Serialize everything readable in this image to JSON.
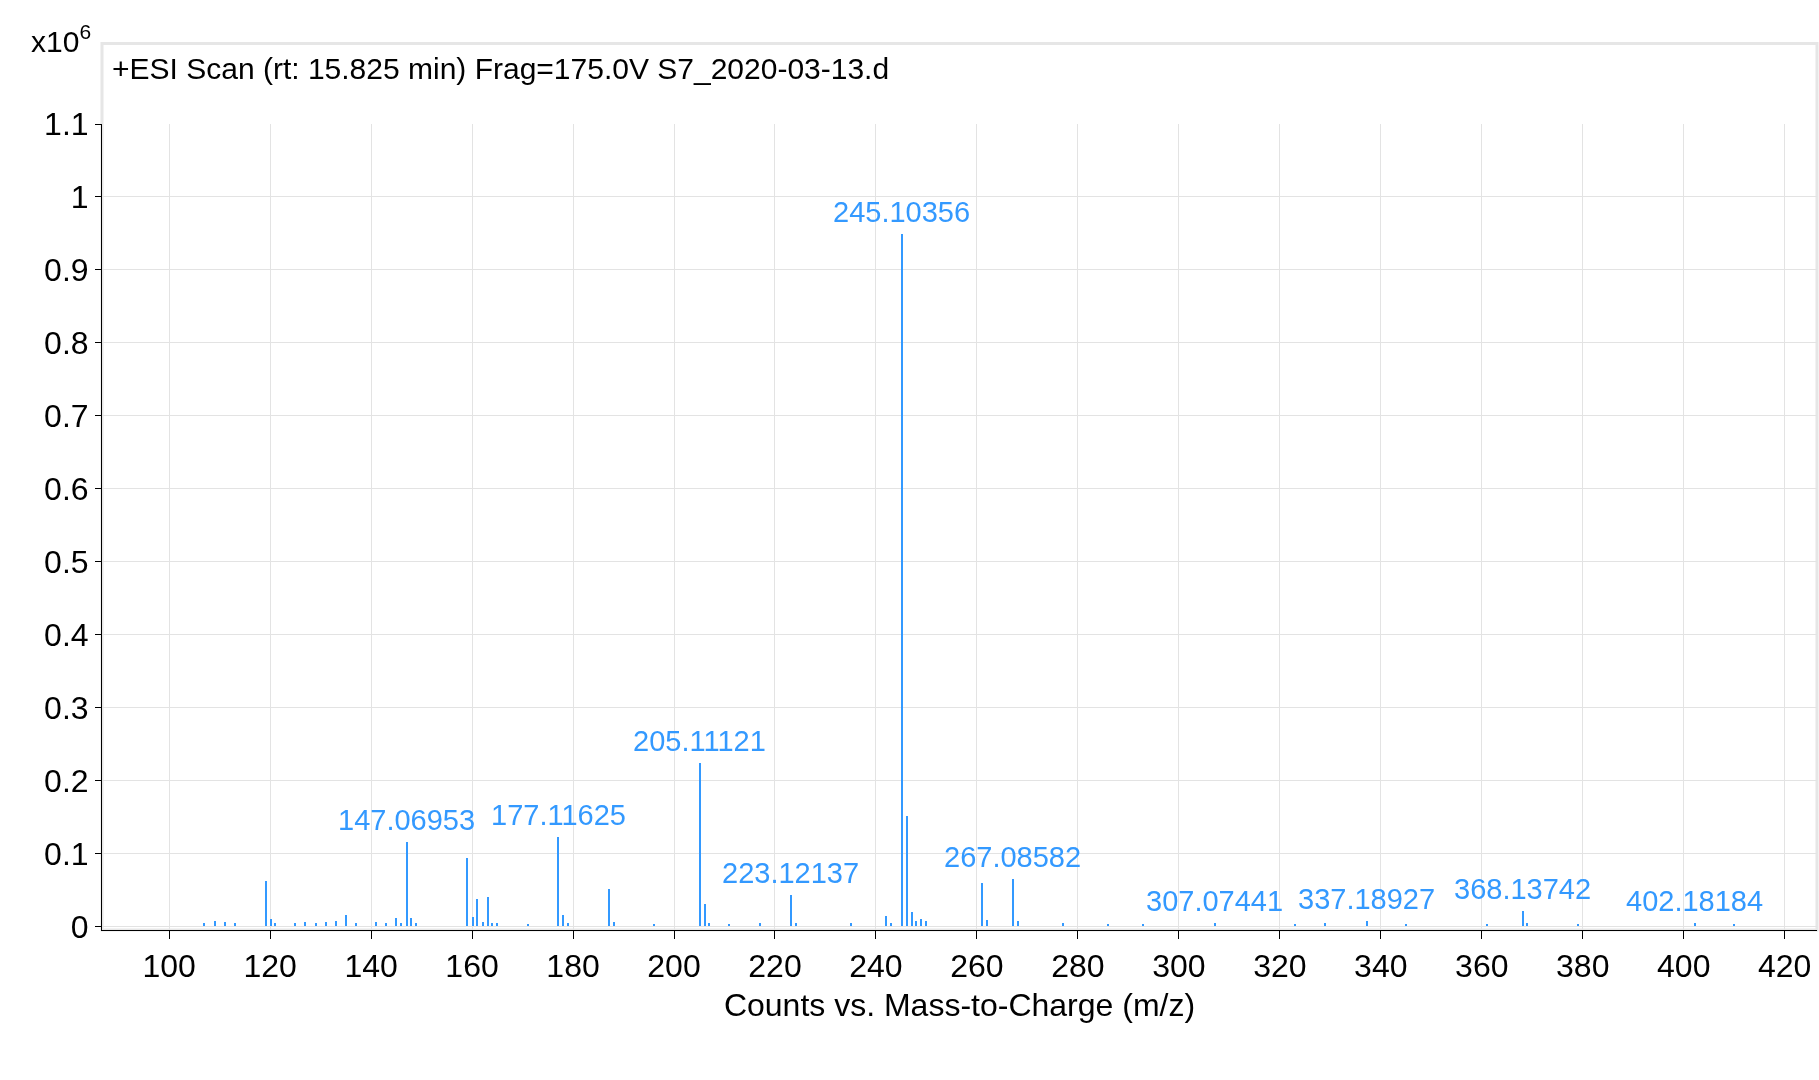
{
  "chart_data": {
    "type": "bar",
    "title": "+ESI Scan (rt: 15.825 min) Frag=175.0V S7_2020-03-13.d",
    "xlabel": "Counts vs. Mass-to-Charge (m/z)",
    "annotations": [
      "x10$^{6}$",
      {
        "text": "147.06953",
        "x": 147.06953,
        "y": 0.116
      },
      {
        "text": "177.11625",
        "x": 177.11625,
        "y": 0.122
      },
      {
        "text": "205.11121",
        "x": 205.11121,
        "y": 0.224
      },
      {
        "text": "223.12137",
        "x": 223.12137,
        "y": 0.043
      },
      {
        "text": "245.10356",
        "x": 245.10356,
        "y": 0.949
      },
      {
        "text": "267.08582",
        "x": 267.08582,
        "y": 0.065
      },
      {
        "text": "307.07441",
        "x": 307.07441,
        "y": 0.004
      },
      {
        "text": "337.18927",
        "x": 337.18927,
        "y": 0.008
      },
      {
        "text": "368.13742",
        "x": 368.13742,
        "y": 0.021
      },
      {
        "text": "402.18184",
        "x": 402.18184,
        "y": 0.004
      }
    ],
    "x": [
      107,
      109,
      111,
      113,
      119.1,
      120.1,
      121,
      125,
      127,
      129,
      131,
      133,
      135,
      137,
      141,
      143,
      145,
      146,
      147.06953,
      148,
      149,
      159.1,
      160.1,
      161,
      162.1,
      163.1,
      164,
      165,
      171,
      177.11625,
      178.1,
      179,
      187.1,
      188.1,
      196,
      205.11121,
      206.1,
      207,
      211,
      217,
      223.12137,
      224.1,
      235,
      242.1,
      243,
      245.10356,
      246.1,
      247.1,
      248,
      249,
      250,
      261.1,
      262.1,
      267.08582,
      268.1,
      277,
      286,
      293,
      307.07441,
      323,
      329,
      337.18927,
      345,
      361,
      368.13742,
      369,
      379,
      402.18184,
      410
    ],
    "series": [
      {
        "color": "#3399ff",
        "values": [
          0.005,
          0.008,
          0.006,
          0.005,
          0.062,
          0.01,
          0.005,
          0.004,
          0.006,
          0.005,
          0.006,
          0.007,
          0.016,
          0.005,
          0.006,
          0.005,
          0.012,
          0.005,
          0.116,
          0.012,
          0.004,
          0.094,
          0.013,
          0.038,
          0.006,
          0.04,
          0.005,
          0.004,
          0.003,
          0.122,
          0.016,
          0.005,
          0.051,
          0.006,
          0.003,
          0.224,
          0.03,
          0.005,
          0.003,
          0.005,
          0.043,
          0.005,
          0.004,
          0.014,
          0.005,
          0.949,
          0.151,
          0.019,
          0.008,
          0.01,
          0.007,
          0.059,
          0.009,
          0.065,
          0.007,
          0.005,
          0.003,
          0.003,
          0.004,
          0.003,
          0.004,
          0.008,
          0.003,
          0.003,
          0.021,
          0.004,
          0.003,
          0.004,
          0.003
        ]
      }
    ],
    "xlim": [
      86.7,
      426.4
    ],
    "xticks": [
      100,
      120,
      140,
      160,
      180,
      200,
      220,
      240,
      260,
      280,
      300,
      320,
      340,
      360,
      380,
      400,
      420
    ],
    "ylim": [
      -0.005,
      1.1
    ],
    "yticks": [
      0,
      0.1,
      0.2,
      0.3,
      0.4,
      0.5,
      0.6,
      0.7,
      0.8,
      0.9,
      1,
      1.1
    ],
    "grid": true
  }
}
